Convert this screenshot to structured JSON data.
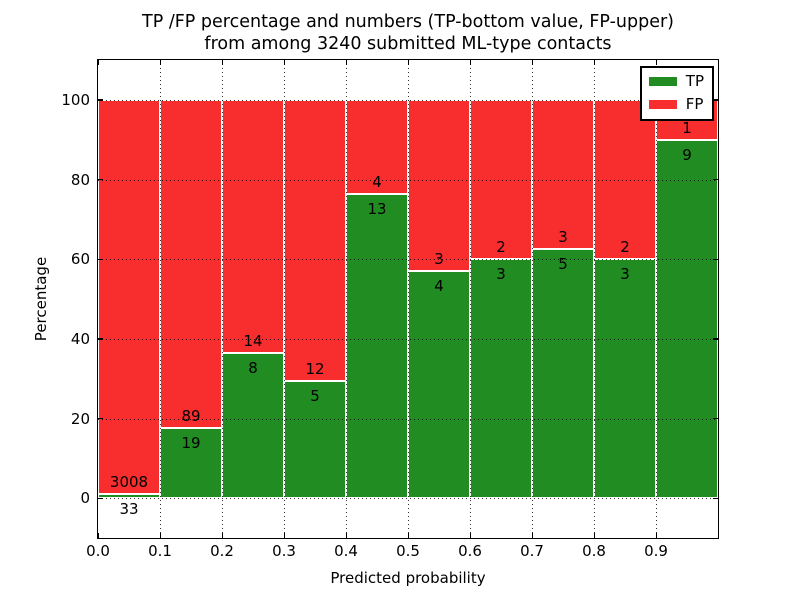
{
  "figure": {
    "title_line1": "TP /FP percentage and numbers (TP-bottom value, FP-upper)",
    "title_line2": "from among 3240 submitted ML-type contacts"
  },
  "chart_data": {
    "type": "bar",
    "stacked": true,
    "orientation": "vertical",
    "title": "TP /FP percentage and numbers (TP-bottom value, FP-upper)\nfrom among 3240 submitted ML-type contacts",
    "xlabel": "Predicted probability",
    "ylabel": "Percentage",
    "total_contacts": 3240,
    "xlim": [
      0.0,
      1.0
    ],
    "ylim": [
      -10,
      110
    ],
    "bin_edges": [
      0.0,
      0.1,
      0.2,
      0.3,
      0.4,
      0.5,
      0.6,
      0.7,
      0.8,
      0.9,
      1.0
    ],
    "xtick_values": [
      0.0,
      0.1,
      0.2,
      0.3,
      0.4,
      0.5,
      0.6,
      0.7,
      0.8,
      0.9
    ],
    "xtick_labels": [
      "0.0",
      "0.1",
      "0.2",
      "0.3",
      "0.4",
      "0.5",
      "0.6",
      "0.7",
      "0.8",
      "0.9"
    ],
    "ytick_values": [
      0,
      20,
      40,
      60,
      80,
      100
    ],
    "ytick_labels": [
      "0",
      "20",
      "40",
      "60",
      "80",
      "100"
    ],
    "grid": {
      "style": "dotted",
      "color": "#000000",
      "x_values": [
        0.1,
        0.2,
        0.3,
        0.4,
        0.5,
        0.6,
        0.7,
        0.8,
        0.9
      ],
      "y_values": [
        0,
        20,
        40,
        60,
        80,
        100
      ]
    },
    "legend": {
      "position": "upper right",
      "entries": [
        {
          "label": "TP",
          "color": "#218C21"
        },
        {
          "label": "FP",
          "color": "#F82D2D"
        }
      ]
    },
    "series": [
      {
        "name": "TP",
        "color": "#218C21",
        "counts": [
          33,
          19,
          8,
          5,
          13,
          4,
          3,
          5,
          3,
          9
        ],
        "percent": [
          1.09,
          17.59,
          36.36,
          29.41,
          76.47,
          57.14,
          60.0,
          62.5,
          60.0,
          90.0
        ]
      },
      {
        "name": "FP",
        "color": "#F82D2D",
        "counts": [
          3008,
          89,
          14,
          12,
          4,
          3,
          2,
          3,
          2,
          1
        ],
        "percent": [
          98.91,
          82.41,
          63.64,
          70.59,
          23.53,
          42.86,
          40.0,
          37.5,
          40.0,
          10.0
        ]
      }
    ]
  }
}
